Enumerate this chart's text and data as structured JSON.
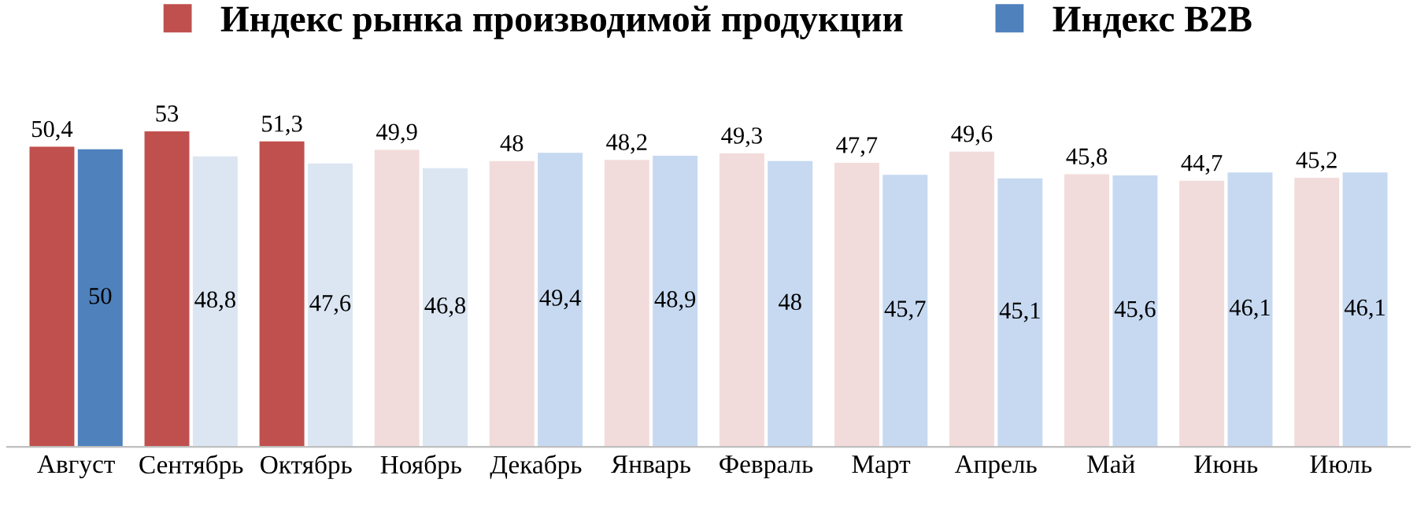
{
  "chart_data": {
    "type": "bar",
    "categories": [
      "Август",
      "Сентябрь",
      "Октябрь",
      "Ноябрь",
      "Декабрь",
      "Январь",
      "Февраль",
      "Март",
      "Апрель",
      "Май",
      "Июнь",
      "Июль"
    ],
    "series": [
      {
        "name": "Индекс рынка производимой продукции",
        "color": "#c0504d",
        "colors": [
          "#c0504d",
          "#c0504d",
          "#c0504d",
          "#f2dcdb",
          "#f2dcdb",
          "#f2dcdb",
          "#f2dcdb",
          "#f2dcdb",
          "#f2dcdb",
          "#f2dcdb",
          "#f2dcdb",
          "#f2dcdb"
        ],
        "values": [
          50.4,
          53,
          51.3,
          49.9,
          48,
          48.2,
          49.3,
          47.7,
          49.6,
          45.8,
          44.7,
          45.2
        ],
        "value_labels": [
          "50,4",
          "53",
          "51,3",
          "49,9",
          "48",
          "48,2",
          "49,3",
          "47,7",
          "49,6",
          "45,8",
          "44,7",
          "45,2"
        ]
      },
      {
        "name": "Индекс B2B",
        "color": "#4f81bd",
        "colors": [
          "#4f81bd",
          "#dce6f2",
          "#dce6f2",
          "#dce6f2",
          "#c6d9f1",
          "#c6d9f1",
          "#c6d9f1",
          "#c6d9f1",
          "#c6d9f1",
          "#c6d9f1",
          "#c6d9f1",
          "#c6d9f1"
        ],
        "values": [
          50,
          48.8,
          47.6,
          46.8,
          49.4,
          48.9,
          48,
          45.7,
          45.1,
          45.6,
          46.1,
          46.1
        ],
        "value_labels": [
          "50",
          "48,8",
          "47,6",
          "46,8",
          "49,4",
          "48,9",
          "48",
          "45,7",
          "45,1",
          "45,6",
          "46,1",
          "46,1"
        ]
      }
    ],
    "legend": "top",
    "grid": false,
    "tick_labels": "x"
  }
}
